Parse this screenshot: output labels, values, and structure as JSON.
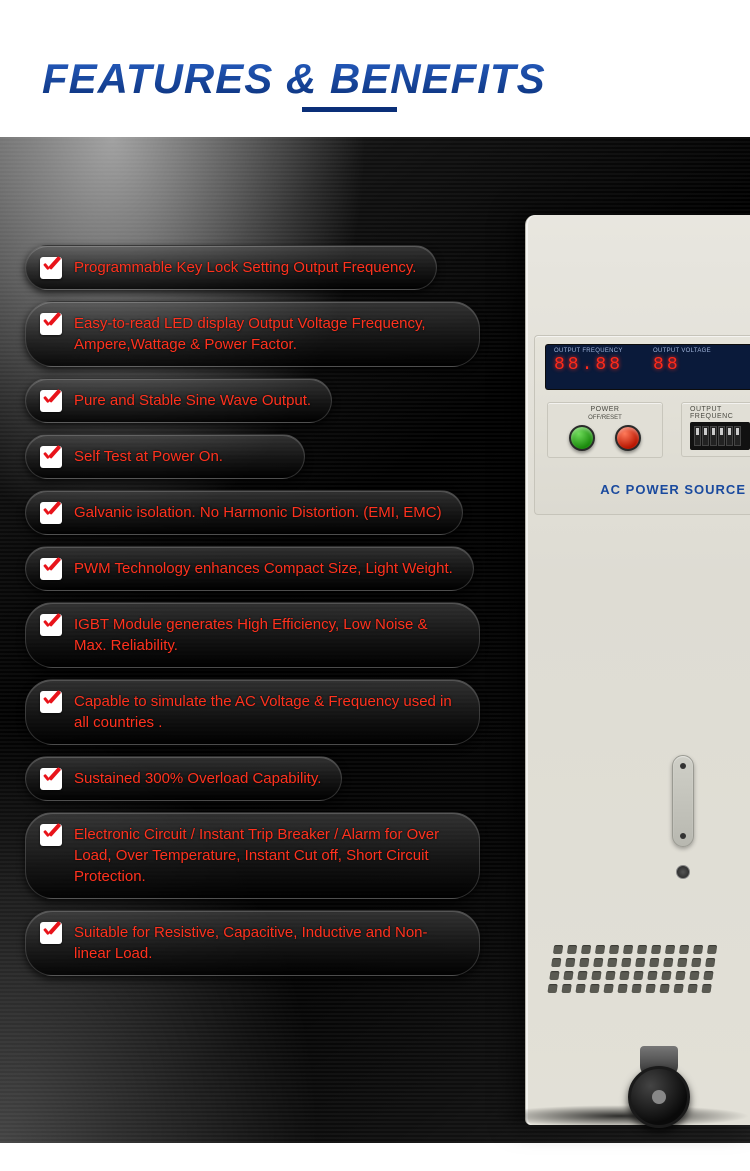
{
  "header": {
    "title": "FEATURES & BENEFITS"
  },
  "colors": {
    "title_gradient_top": "#2860c4",
    "title_gradient_bottom": "#0a2f78",
    "underline": "#0a2f78",
    "feature_text": "#ff321e",
    "check_mark": "#e8131a",
    "led_digit": "#ff2a1a",
    "panel_label": "#1a4a9e"
  },
  "features": [
    {
      "text": "Programmable Key Lock Setting Output Frequency."
    },
    {
      "text": "Easy-to-read LED display Output Voltage Frequency, Ampere,Wattage & Power Factor."
    },
    {
      "text": "Pure and Stable Sine Wave Output."
    },
    {
      "text": "Self Test at Power On."
    },
    {
      "text": "Galvanic isolation. No Harmonic Distortion. (EMI, EMC)"
    },
    {
      "text": "PWM Technology enhances Compact Size, Light Weight."
    },
    {
      "text": "IGBT Module generates High Efficiency, Low Noise & Max. Reliability."
    },
    {
      "text": "Capable to simulate the AC Voltage & Frequency used in all countries ."
    },
    {
      "text": "Sustained 300% Overload Capability."
    },
    {
      "text": "Electronic Circuit / Instant Trip Breaker / Alarm for Over Load, Over Temperature, Instant Cut off, Short Circuit Protection."
    },
    {
      "text": "Suitable for Resistive, Capacitive, Inductive and Non-linear Load."
    }
  ],
  "device": {
    "led_labels": {
      "freq": "OUTPUT  FREQUENCY",
      "volt": "OUTPUT  VOLTAGE"
    },
    "led_values": {
      "freq": "88.88",
      "volt": "88"
    },
    "power_label": "POWER",
    "power_sublabel": "OFF/RESET",
    "freq_label": "OUTPUT FREQUENC",
    "bottom_label": "AC POWER SOURCE"
  }
}
